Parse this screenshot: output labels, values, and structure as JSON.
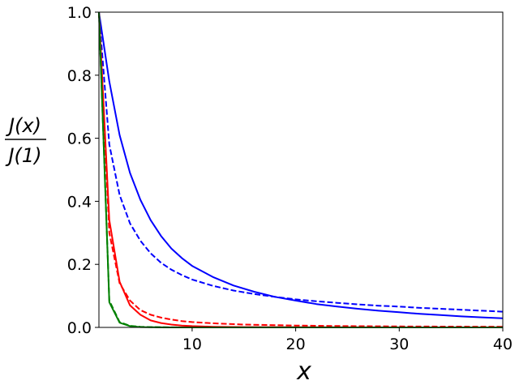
{
  "chart_data": {
    "type": "line",
    "title": "",
    "xlabel": "x",
    "ylabel": {
      "numerator": "J(x)",
      "denominator": "J(1)"
    },
    "xlim": [
      1,
      40
    ],
    "ylim": [
      0,
      1.0
    ],
    "xticks": [
      10,
      20,
      30,
      40
    ],
    "yticks": [
      0.0,
      0.2,
      0.4,
      0.6,
      0.8,
      1.0
    ],
    "ytick_labels": [
      "0.0",
      "0.2",
      "0.4",
      "0.6",
      "0.8",
      "1.0"
    ],
    "grid": false,
    "legend": "none",
    "series": [
      {
        "color": "#0000ff",
        "style": "solid",
        "x": [
          1,
          2,
          3,
          4,
          5,
          6,
          7,
          8,
          9,
          10,
          12,
          14,
          16,
          18,
          20,
          22,
          24,
          26,
          28,
          30,
          32,
          34,
          36,
          38,
          40
        ],
        "y": [
          1.0,
          0.78,
          0.61,
          0.49,
          0.405,
          0.34,
          0.29,
          0.25,
          0.22,
          0.195,
          0.16,
          0.133,
          0.113,
          0.097,
          0.085,
          0.074,
          0.066,
          0.059,
          0.053,
          0.048,
          0.043,
          0.039,
          0.035,
          0.032,
          0.029
        ]
      },
      {
        "color": "#0000ff",
        "style": "dashed",
        "x": [
          1,
          2,
          3,
          4,
          5,
          6,
          7,
          8,
          9,
          10,
          12,
          14,
          16,
          18,
          20,
          22,
          24,
          26,
          28,
          30,
          32,
          34,
          36,
          38,
          40
        ],
        "y": [
          1.0,
          0.58,
          0.42,
          0.33,
          0.275,
          0.235,
          0.205,
          0.183,
          0.166,
          0.152,
          0.132,
          0.117,
          0.106,
          0.097,
          0.089,
          0.083,
          0.078,
          0.073,
          0.069,
          0.066,
          0.062,
          0.059,
          0.056,
          0.053,
          0.05
        ]
      },
      {
        "color": "#ff0000",
        "style": "solid",
        "x": [
          1,
          2,
          3,
          4,
          5,
          6,
          7,
          8,
          9,
          10,
          12,
          15,
          20,
          25,
          30,
          35,
          40
        ],
        "y": [
          1.0,
          0.34,
          0.145,
          0.07,
          0.04,
          0.022,
          0.014,
          0.009,
          0.006,
          0.004,
          0.002,
          0.001,
          0.0005,
          0.0002,
          0.0001,
          0.0001,
          0.0
        ]
      },
      {
        "color": "#ff0000",
        "style": "dashed",
        "x": [
          1,
          2,
          3,
          4,
          5,
          6,
          7,
          8,
          9,
          10,
          12,
          15,
          20,
          25,
          30,
          35,
          40
        ],
        "y": [
          1.0,
          0.3,
          0.14,
          0.085,
          0.055,
          0.04,
          0.031,
          0.025,
          0.02,
          0.017,
          0.013,
          0.009,
          0.006,
          0.004,
          0.003,
          0.0025,
          0.002
        ]
      },
      {
        "color": "#008000",
        "style": "solid",
        "x": [
          1,
          2,
          3,
          4,
          5,
          6,
          8,
          10,
          15,
          20,
          30,
          40
        ],
        "y": [
          1.0,
          0.08,
          0.015,
          0.004,
          0.001,
          0.0005,
          0.0001,
          0.0,
          0.0,
          0.0,
          0.0,
          0.0
        ]
      },
      {
        "color": "#008000",
        "style": "dashed",
        "x": [
          1,
          2,
          3,
          4,
          5,
          6,
          8,
          10,
          15,
          20,
          30,
          40
        ],
        "y": [
          1.0,
          0.085,
          0.017,
          0.005,
          0.002,
          0.001,
          0.0003,
          0.0001,
          0.0,
          0.0,
          0.0,
          0.0
        ]
      }
    ]
  }
}
